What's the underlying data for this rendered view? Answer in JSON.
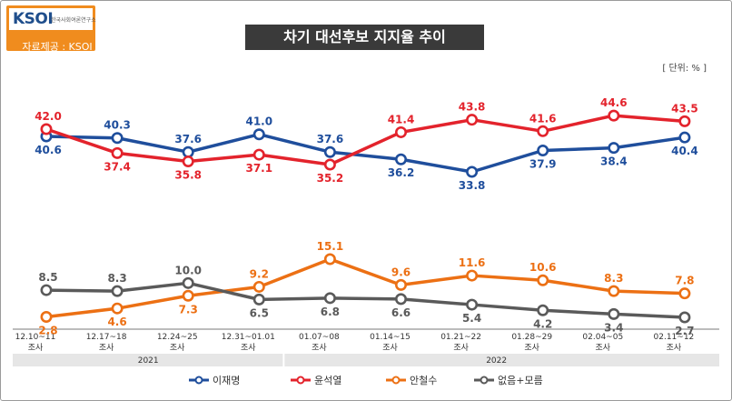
{
  "header": {
    "logo_mark": "KSOI",
    "logo_org": "한국사회여론연구소",
    "source": "자료제공 : KSOI",
    "title": "차기 대선후보 지지율 추이",
    "unit": "[ 단위: % ]"
  },
  "chart_data": {
    "type": "line",
    "title": "차기 대선후보 지지율 추이",
    "unit": "[ 단위: % ]",
    "categories": [
      "12.10~11",
      "12.17~18",
      "12.24~25",
      "12.31~01.01",
      "01.07~08",
      "01.14~15",
      "01.21~22",
      "01.28~29",
      "02.04~05",
      "02.11~12"
    ],
    "category_sublabel": "조사",
    "years": [
      {
        "label": "2021",
        "from": 0,
        "to": 3
      },
      {
        "label": "2022",
        "from": 4,
        "to": 9
      }
    ],
    "series": [
      {
        "name": "이재명",
        "color": "#1f4e9c",
        "values": [
          40.6,
          40.3,
          37.6,
          41.0,
          37.6,
          36.2,
          33.8,
          37.9,
          38.4,
          40.4
        ],
        "label_pos": [
          "below",
          "above",
          "above",
          "above",
          "above",
          "below",
          "below",
          "below",
          "below",
          "below"
        ]
      },
      {
        "name": "윤석열",
        "color": "#e3232c",
        "values": [
          42.0,
          37.4,
          35.8,
          37.1,
          35.2,
          41.4,
          43.8,
          41.6,
          44.6,
          43.5
        ],
        "label_pos": [
          "above",
          "below",
          "below",
          "below",
          "below",
          "above",
          "above",
          "above",
          "above",
          "above"
        ]
      },
      {
        "name": "안철수",
        "color": "#ec7014",
        "values": [
          2.8,
          4.6,
          7.3,
          9.2,
          15.1,
          9.6,
          11.6,
          10.6,
          8.3,
          7.8
        ],
        "label_pos": [
          "below",
          "below",
          "below",
          "above",
          "above",
          "above",
          "above",
          "above",
          "above",
          "above"
        ]
      },
      {
        "name": "없음+모름",
        "color": "#5a5a5a",
        "values": [
          8.5,
          8.3,
          10.0,
          6.5,
          6.8,
          6.6,
          5.4,
          4.2,
          3.4,
          2.7
        ],
        "label_pos": [
          "above",
          "above",
          "above",
          "below",
          "below",
          "below",
          "below",
          "below",
          "below",
          "below"
        ]
      }
    ],
    "legend_position": "bottom",
    "grid": false
  }
}
